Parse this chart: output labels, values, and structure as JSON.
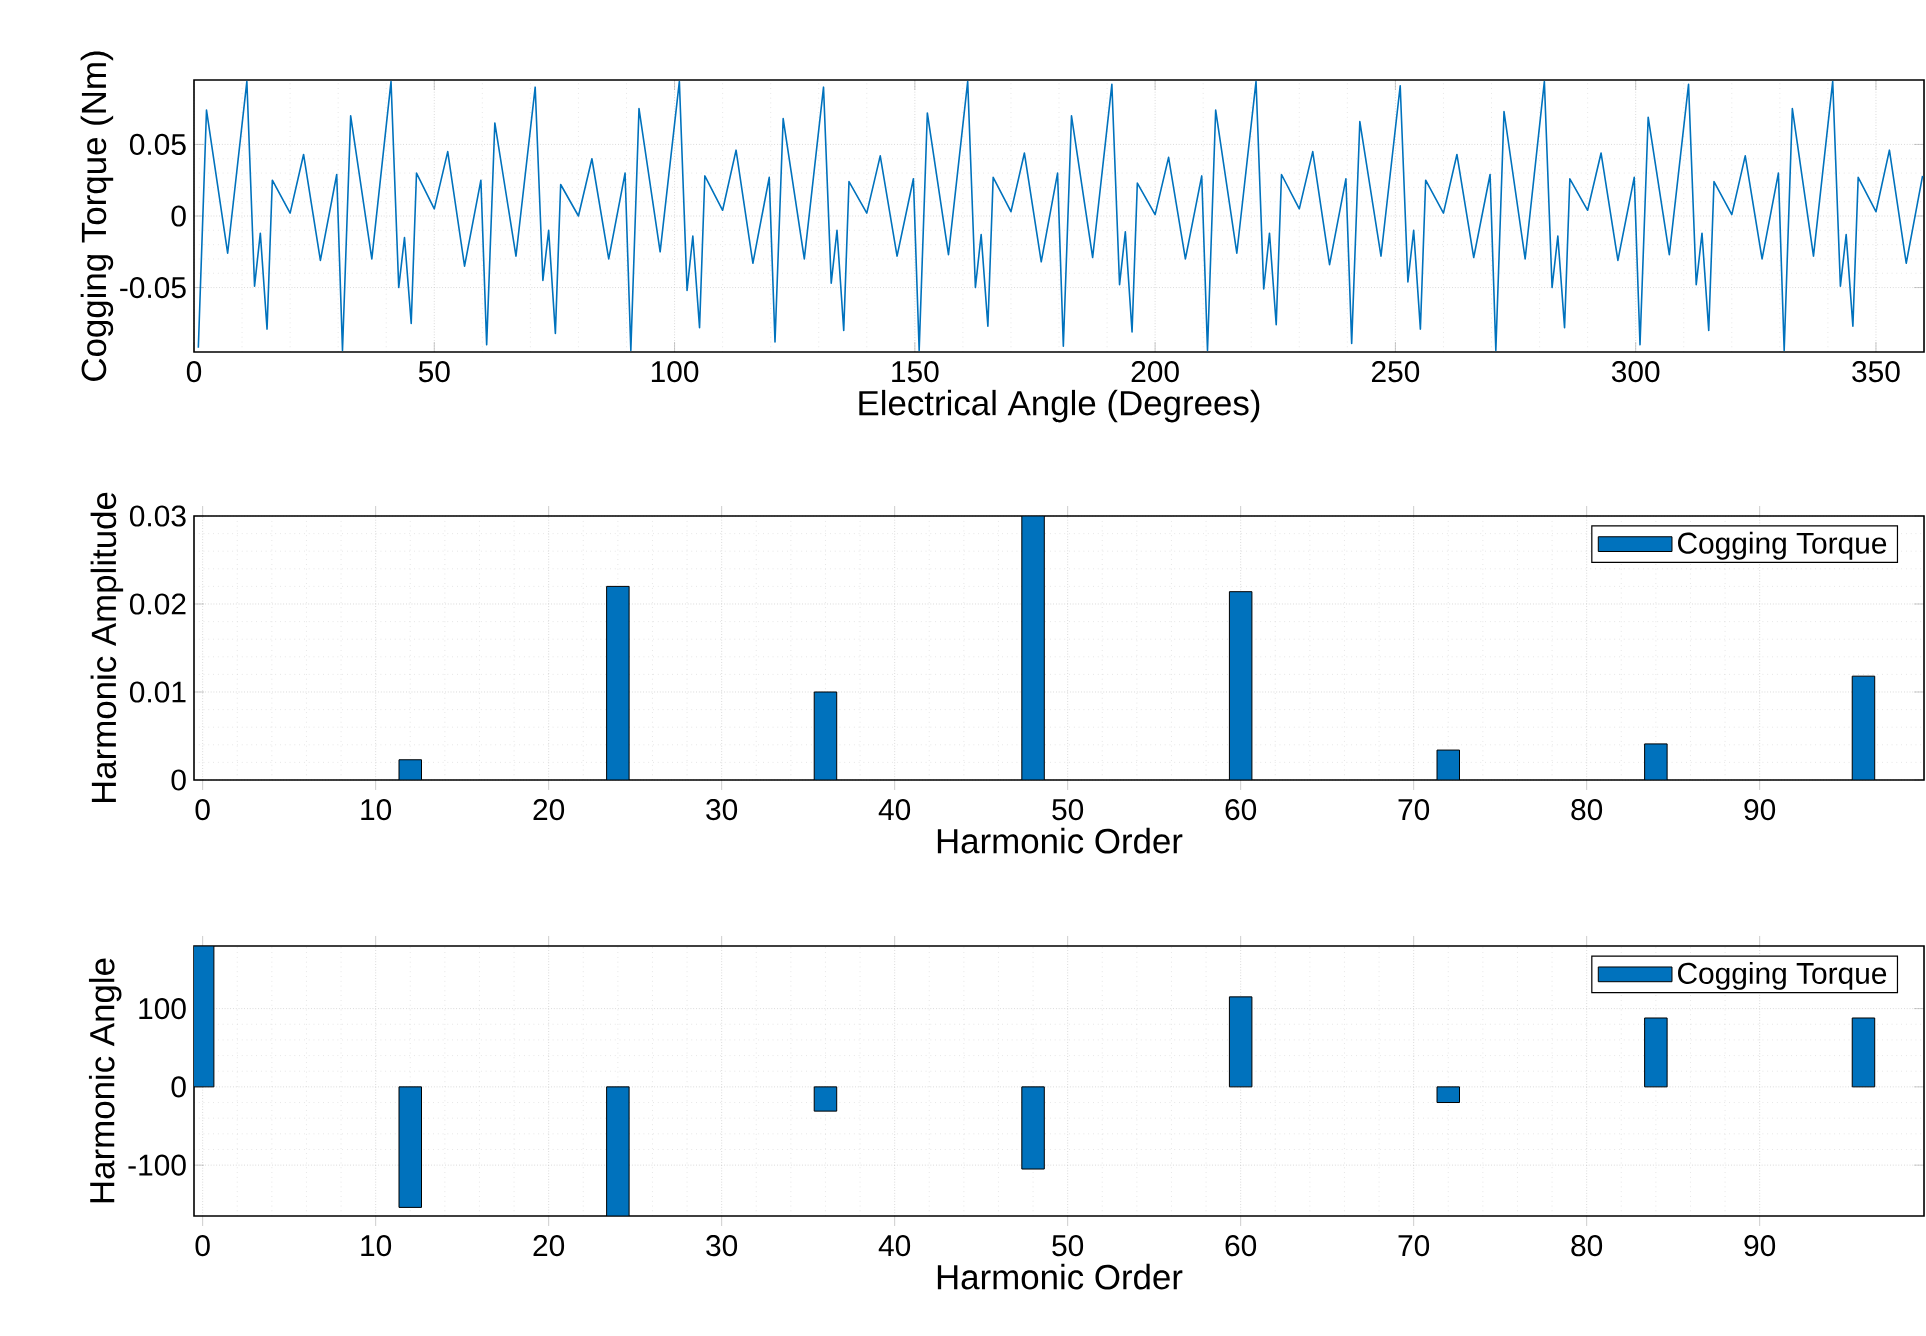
{
  "chart_data": [
    {
      "type": "line",
      "xlabel": "Electrical Angle (Degrees)",
      "ylabel": "Cogging Torque (Nm)",
      "xlim": [
        0,
        360
      ],
      "ylim": [
        -0.095,
        0.095
      ],
      "xticks": [
        0,
        50,
        100,
        150,
        200,
        250,
        300,
        350
      ],
      "yticks": [
        -0.05,
        0,
        0.05
      ],
      "grid": true,
      "x": [
        0.9,
        2.6,
        7,
        11,
        12.6,
        13.8,
        15.2,
        16.3,
        20,
        22.8,
        26.3,
        29.7,
        30.9,
        32.6,
        37,
        41,
        42.6,
        43.8,
        45.2,
        46.3,
        50,
        52.8,
        56.3,
        59.7,
        60.9,
        62.6,
        67,
        71,
        72.6,
        73.8,
        75.2,
        76.3,
        80,
        82.8,
        86.3,
        89.7,
        90.9,
        92.6,
        97,
        101,
        102.6,
        103.8,
        105.2,
        106.3,
        110,
        112.8,
        116.3,
        119.7,
        120.9,
        122.6,
        127,
        131,
        132.6,
        133.8,
        135.2,
        136.3,
        140,
        142.8,
        146.3,
        149.7,
        150.9,
        152.6,
        157,
        161,
        162.6,
        163.8,
        165.2,
        166.3,
        170,
        172.8,
        176.3,
        179.7,
        180.9,
        182.6,
        187,
        191,
        192.6,
        193.8,
        195.2,
        196.3,
        200,
        202.8,
        206.3,
        209.7,
        210.9,
        212.6,
        217,
        221,
        222.6,
        223.8,
        225.2,
        226.3,
        230,
        232.8,
        236.3,
        239.7,
        240.9,
        242.6,
        247,
        251,
        252.6,
        253.8,
        255.2,
        256.3,
        260,
        262.8,
        266.3,
        269.7,
        270.9,
        272.6,
        277,
        281,
        282.6,
        283.8,
        285.2,
        286.3,
        290,
        292.8,
        296.3,
        299.7,
        300.9,
        302.6,
        307,
        311,
        312.6,
        313.8,
        315.2,
        316.3,
        320,
        322.8,
        326.3,
        329.7,
        330.9,
        332.6,
        337,
        341,
        342.6,
        343.8,
        345.2,
        346.3,
        350,
        352.8,
        356.3,
        359.7
      ],
      "series": [
        {
          "color": "#0072bd",
          "values": [
            -0.092,
            0.074,
            -0.026,
            0.094,
            -0.049,
            -0.012,
            -0.079,
            0.025,
            0.002,
            0.043,
            -0.031,
            0.029,
            -0.094,
            0.07,
            -0.03,
            0.094,
            -0.05,
            -0.015,
            -0.075,
            0.03,
            0.005,
            0.045,
            -0.035,
            0.025,
            -0.09,
            0.065,
            -0.028,
            0.09,
            -0.045,
            -0.01,
            -0.082,
            0.022,
            0.0,
            0.04,
            -0.03,
            0.03,
            -0.094,
            0.075,
            -0.025,
            0.094,
            -0.052,
            -0.014,
            -0.078,
            0.028,
            0.004,
            0.046,
            -0.033,
            0.027,
            -0.088,
            0.068,
            -0.03,
            0.09,
            -0.047,
            -0.01,
            -0.08,
            0.024,
            0.002,
            0.042,
            -0.028,
            0.026,
            -0.094,
            0.072,
            -0.027,
            0.094,
            -0.05,
            -0.013,
            -0.077,
            0.027,
            0.003,
            0.044,
            -0.032,
            0.03,
            -0.091,
            0.07,
            -0.029,
            0.092,
            -0.048,
            -0.011,
            -0.081,
            0.023,
            0.001,
            0.041,
            -0.03,
            0.028,
            -0.094,
            0.074,
            -0.026,
            0.094,
            -0.051,
            -0.012,
            -0.076,
            0.029,
            0.005,
            0.045,
            -0.034,
            0.026,
            -0.089,
            0.066,
            -0.028,
            0.091,
            -0.046,
            -0.01,
            -0.079,
            0.025,
            0.002,
            0.043,
            -0.029,
            0.029,
            -0.094,
            0.073,
            -0.03,
            0.094,
            -0.05,
            -0.014,
            -0.078,
            0.026,
            0.004,
            0.044,
            -0.031,
            0.027,
            -0.09,
            0.069,
            -0.027,
            0.092,
            -0.048,
            -0.012,
            -0.08,
            0.024,
            0.001,
            0.042,
            -0.03,
            0.03,
            -0.094,
            0.075,
            -0.028,
            0.094,
            -0.049,
            -0.013,
            -0.077,
            0.027,
            0.003,
            0.046,
            -0.033,
            0.028
          ]
        }
      ]
    },
    {
      "type": "bar",
      "xlabel": "Harmonic Order",
      "ylabel": "Harmonic Amplitude",
      "xlim": [
        -0.5,
        99.5
      ],
      "ylim": [
        0,
        0.03
      ],
      "xticks": [
        0,
        10,
        20,
        30,
        40,
        50,
        60,
        70,
        80,
        90
      ],
      "yticks": [
        0,
        0.01,
        0.02,
        0.03
      ],
      "grid": true,
      "legend": "top right",
      "x": [
        12,
        24,
        36,
        48,
        60,
        72,
        84,
        96
      ],
      "series": [
        {
          "name": "Cogging Torque",
          "color": "#0072bd",
          "values": [
            0.0023,
            0.022,
            0.01,
            0.03,
            0.0214,
            0.0034,
            0.0041,
            0.0118
          ]
        }
      ]
    },
    {
      "type": "bar",
      "xlabel": "Harmonic Order",
      "ylabel": "Harmonic Angle",
      "xlim": [
        -0.5,
        99.5
      ],
      "ylim": [
        -165,
        180
      ],
      "xticks": [
        0,
        10,
        20,
        30,
        40,
        50,
        60,
        70,
        80,
        90
      ],
      "yticks": [
        -100,
        0,
        100
      ],
      "grid": true,
      "legend": "top right",
      "x": [
        0,
        12,
        24,
        36,
        48,
        60,
        72,
        84,
        96
      ],
      "series": [
        {
          "name": "Cogging Torque",
          "color": "#0072bd",
          "values": [
            180,
            -154,
            -165,
            -31,
            -105,
            115,
            -20,
            88,
            88
          ]
        }
      ]
    }
  ]
}
